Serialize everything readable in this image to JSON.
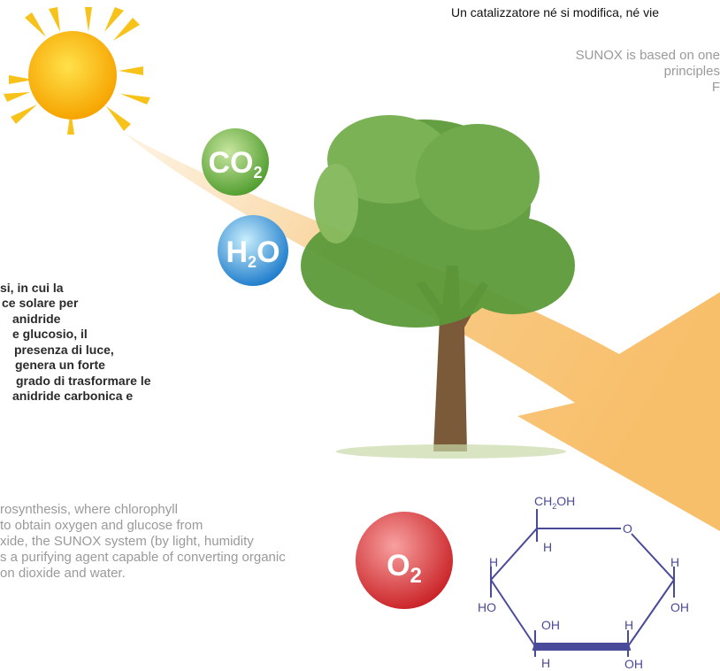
{
  "header": {
    "italian": "Un catalizzatore né si modifica, né vie",
    "english_lines": [
      "SUNOX is based on one",
      "principles",
      "F"
    ]
  },
  "italian_text": [
    "si, in cui la",
    "ce solare per",
    "anidride",
    "e glucosio, il",
    "presenza di luce,",
    "genera un forte",
    "grado di trasformare le",
    "anidride carbonica e"
  ],
  "english_text": [
    "rosynthesis, where chlorophyll",
    "to obtain oxygen and glucose from",
    "xide, the SUNOX system (by light, humidity",
    "s a purifying agent capable of converting organic",
    "on dioxide and water."
  ],
  "molecules": {
    "co2": {
      "text": "CO",
      "sub": "2"
    },
    "h2o": {
      "text": "H",
      "sub": "2",
      "tail": "O"
    },
    "o2": {
      "text": "O",
      "sub": "2"
    }
  },
  "glucose": {
    "ch2oh": {
      "text": "CH",
      "sub": "2",
      "tail": "OH"
    },
    "labels": [
      "O",
      "H",
      "H",
      "H",
      "HO",
      "OH",
      "OH",
      "H",
      "H",
      "OH"
    ]
  }
}
